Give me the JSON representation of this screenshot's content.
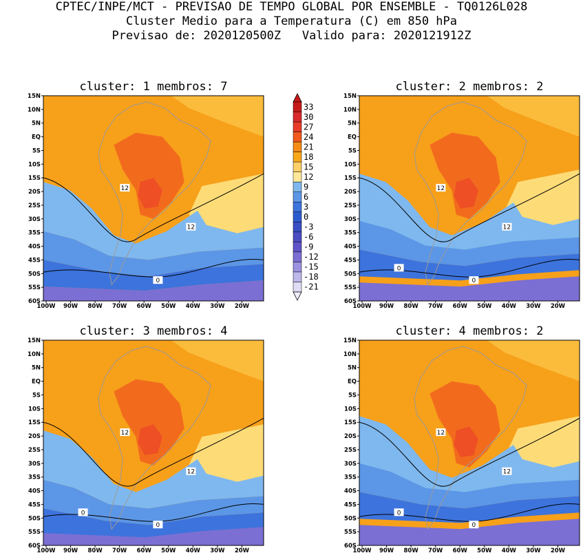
{
  "header": {
    "line1": "CPTEC/INPE/MCT - PREVISAO DE TEMPO GLOBAL POR ENSEMBLE - TQ0126L028",
    "line2": "Cluster Medio para a Temperatura (C) em 850 hPa",
    "line3": "Previsao de: 2020120500Z   Valido para: 2020121912Z"
  },
  "axes": {
    "lat_labels": [
      "15N",
      "10N",
      "5N",
      "EQ",
      "5S",
      "10S",
      "15S",
      "20S",
      "25S",
      "30S",
      "35S",
      "40S",
      "45S",
      "50S",
      "55S",
      "60S"
    ],
    "lon_labels": [
      "100W",
      "90W",
      "80W",
      "70W",
      "60W",
      "50W",
      "40W",
      "30W",
      "20W"
    ]
  },
  "colorbar": {
    "labels": [
      "33",
      "30",
      "27",
      "24",
      "21",
      "18",
      "15",
      "12",
      "9",
      "6",
      "3",
      "0",
      "-3",
      "-6",
      "-9",
      "-12",
      "-15",
      "-18",
      "-21"
    ],
    "colors": [
      "#c61a1a",
      "#d92a2a",
      "#e83c28",
      "#f25a1e",
      "#f58c17",
      "#f9a81c",
      "#fdd06a",
      "#fee99a",
      "#7fb8ee",
      "#5c96e6",
      "#3d73dc",
      "#2d5bcf",
      "#3a4ec4",
      "#4b4cc2",
      "#5f55c8",
      "#7b6fd3",
      "#9b93df",
      "#bdb8ea",
      "#dedbf5"
    ]
  },
  "panels": [
    {
      "cluster_label": "cluster:",
      "cluster": "1",
      "members_label": "membros:",
      "members": "7",
      "contour_labels": [
        "12",
        "12",
        "0"
      ]
    },
    {
      "cluster_label": "cluster:",
      "cluster": "2",
      "members_label": "membros:",
      "members": "2",
      "contour_labels": [
        "12",
        "12",
        "0",
        "0"
      ]
    },
    {
      "cluster_label": "cluster:",
      "cluster": "3",
      "members_label": "membros:",
      "members": "4",
      "contour_labels": [
        "12",
        "12",
        "0",
        "0"
      ]
    },
    {
      "cluster_label": "cluster:",
      "cluster": "4",
      "members_label": "membros:",
      "members": "2",
      "contour_labels": [
        "12",
        "12",
        "0",
        "0"
      ]
    }
  ]
}
